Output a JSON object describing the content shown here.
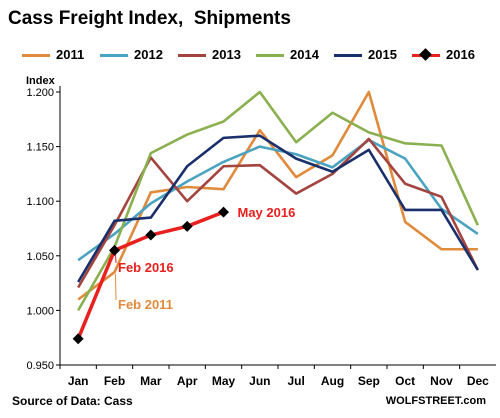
{
  "title": "Cass Freight Index,  Shipments",
  "source": "Source of Data: Cass",
  "credit": "WOLFSTREET.com",
  "chart_data": {
    "type": "line",
    "title": "Cass Freight Index,  Shipments",
    "ylabel": "Index",
    "xlabel": "",
    "categories": [
      "Jan",
      "Feb",
      "Mar",
      "Apr",
      "May",
      "Jun",
      "Jul",
      "Aug",
      "Sep",
      "Oct",
      "Nov",
      "Dec"
    ],
    "ylim": [
      0.95,
      1.2
    ],
    "yticks": [
      "0.950",
      "1.000",
      "1.050",
      "1.100",
      "1.150",
      "1.200"
    ],
    "grid": false,
    "legend_position": "top",
    "series": [
      {
        "name": "2011",
        "color": "#e08a3c",
        "values": [
          1.01,
          1.035,
          1.108,
          1.113,
          1.111,
          1.165,
          1.122,
          1.142,
          1.2,
          1.081,
          1.056,
          1.056
        ]
      },
      {
        "name": "2012",
        "color": "#4aa3c0",
        "values": [
          1.046,
          1.07,
          1.098,
          1.118,
          1.136,
          1.15,
          1.143,
          1.131,
          1.156,
          1.139,
          1.093,
          1.07
        ]
      },
      {
        "name": "2013",
        "color": "#a3443f",
        "values": [
          1.021,
          1.078,
          1.14,
          1.1,
          1.132,
          1.133,
          1.107,
          1.125,
          1.157,
          1.116,
          1.104,
          1.037
        ]
      },
      {
        "name": "2014",
        "color": "#8bb050",
        "values": [
          1.0,
          1.058,
          1.144,
          1.161,
          1.173,
          1.2,
          1.154,
          1.181,
          1.163,
          1.153,
          1.151,
          1.078
        ]
      },
      {
        "name": "2015",
        "color": "#1a2f6b",
        "values": [
          1.026,
          1.082,
          1.085,
          1.132,
          1.158,
          1.16,
          1.139,
          1.127,
          1.147,
          1.092,
          1.092,
          1.037
        ]
      },
      {
        "name": "2016",
        "color": "#e8201e",
        "marker": "diamond",
        "values": [
          0.974,
          1.055,
          1.069,
          1.077,
          1.09,
          null,
          null,
          null,
          null,
          null,
          null,
          null
        ]
      }
    ],
    "annotations": [
      {
        "text": "May 2016",
        "color": "#e8201e",
        "x": "May",
        "y": 1.09
      },
      {
        "text": "Feb 2016",
        "color": "#e8201e",
        "x": "Feb",
        "y": 1.055
      },
      {
        "text": "Feb 2011",
        "color": "#e08a3c",
        "x": "Feb",
        "y": 1.035
      }
    ]
  }
}
